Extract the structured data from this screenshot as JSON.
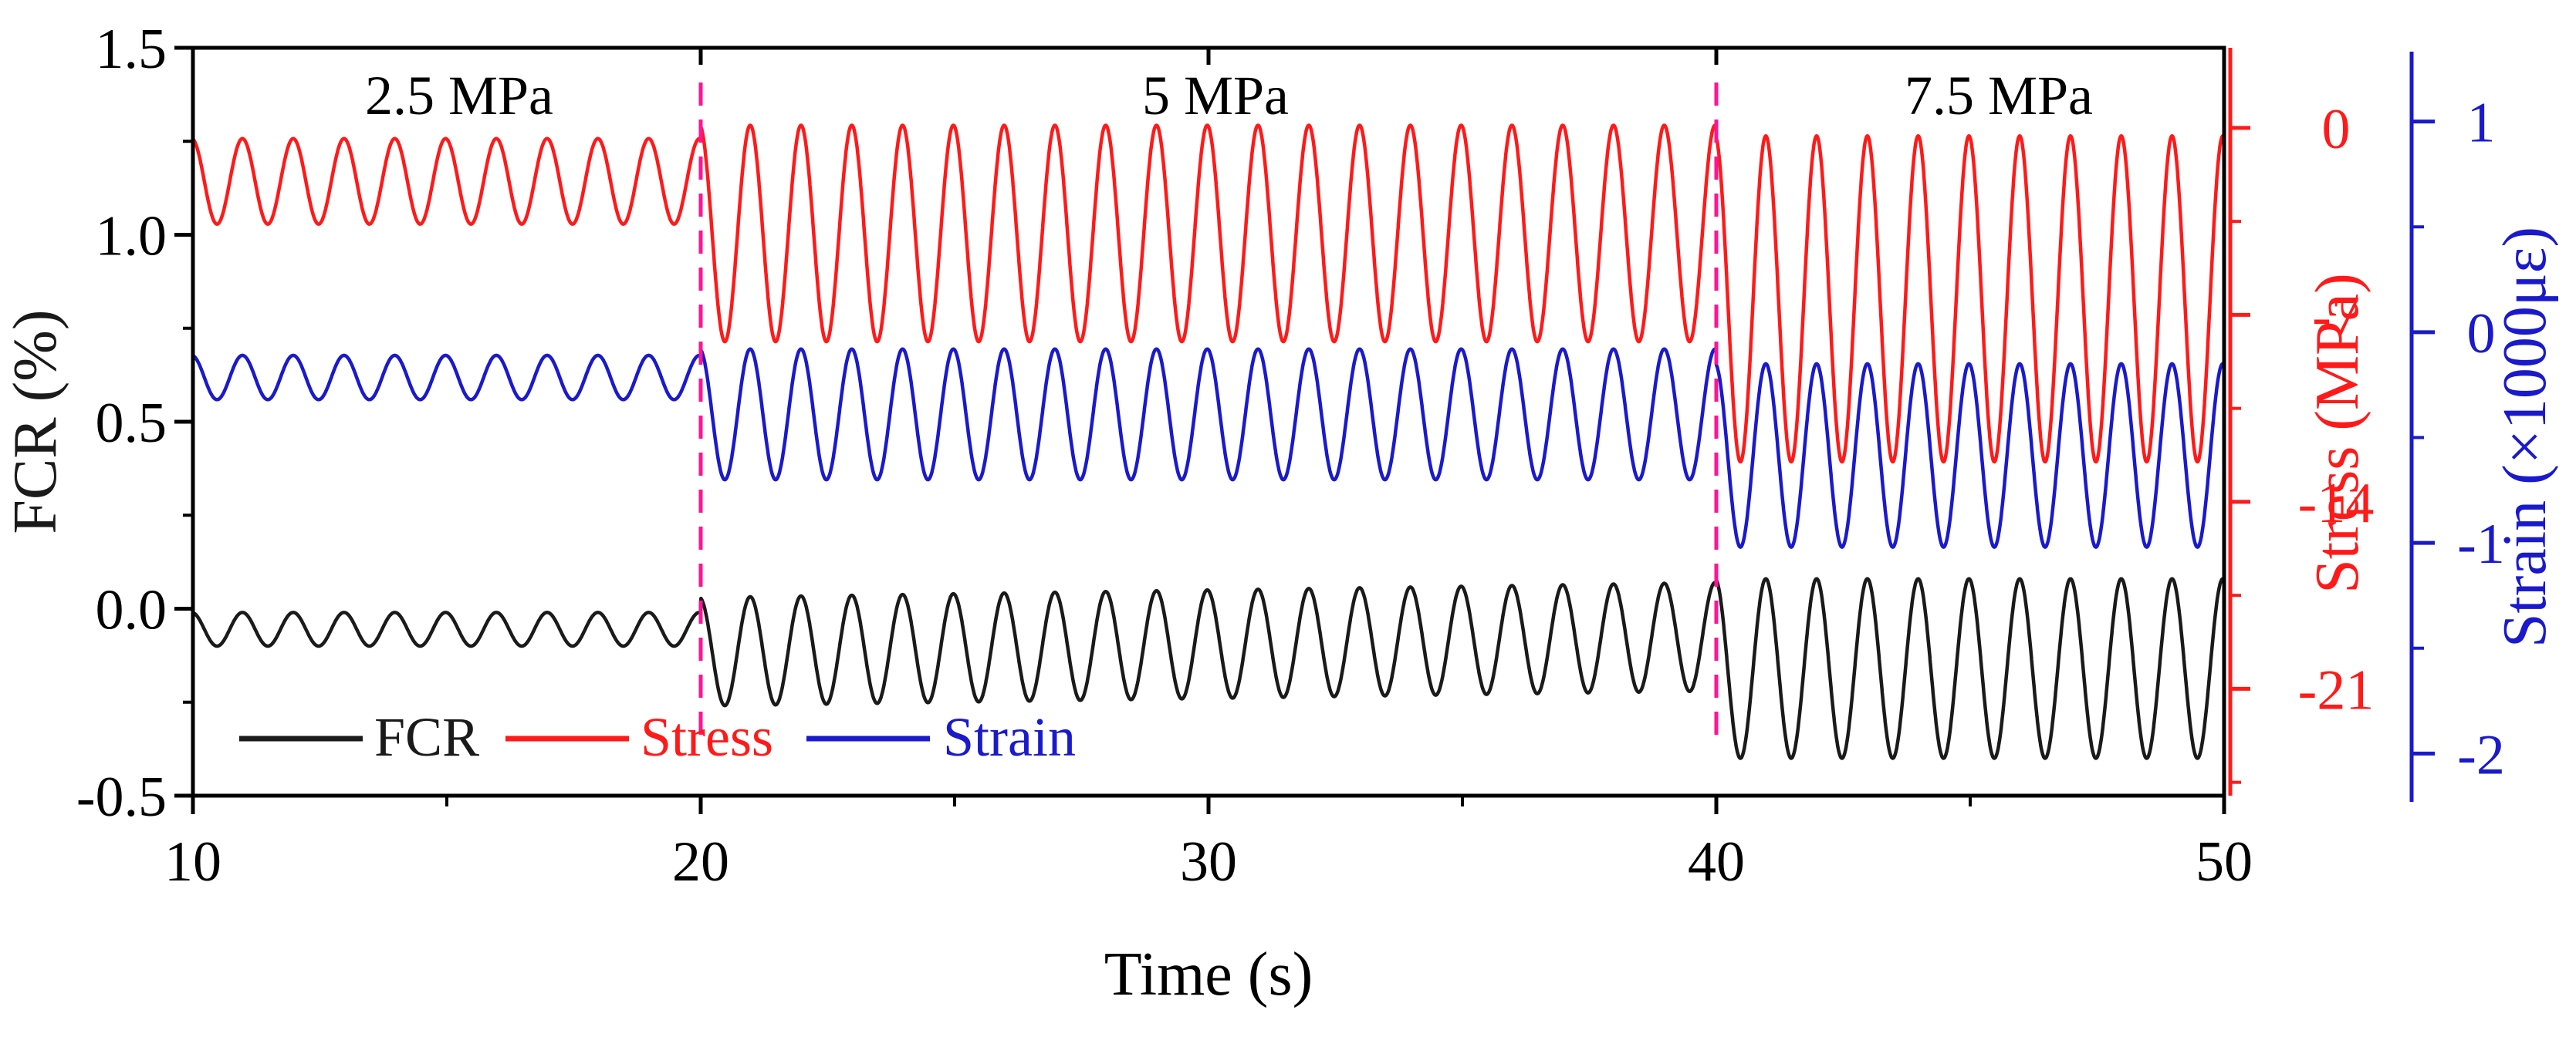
{
  "chart_data": {
    "type": "line",
    "xlabel": "Time (s)",
    "x_range": [
      10,
      50
    ],
    "x_ticks": [
      10,
      20,
      30,
      40,
      50
    ],
    "y_axes": {
      "left": {
        "label": "FCR (%)",
        "range": [
          -0.5,
          1.5
        ],
        "ticks": [
          "-0.5",
          "0.0",
          "0.5",
          "1.0",
          "1.5"
        ],
        "color": "#1a1a1a"
      },
      "right1": {
        "label": "Stress (MPa)",
        "range": [
          -25,
          3
        ],
        "ticks": [
          "0",
          "-7",
          "-14",
          "-21"
        ],
        "tick_values": [
          0,
          -7,
          -14,
          -21
        ],
        "color": "#ff1a1a"
      },
      "right2": {
        "label": "Strain (×1000με)",
        "range": [
          -2.2,
          1.35
        ],
        "ticks": [
          "1",
          "0",
          "-1",
          "-2"
        ],
        "tick_values": [
          1,
          0,
          -1,
          -2
        ],
        "color": "#1a1acc"
      }
    },
    "segments": [
      {
        "label": "2.5 MPa",
        "x_start": 10,
        "x_end": 20
      },
      {
        "label": "5 MPa",
        "x_start": 20,
        "x_end": 40
      },
      {
        "label": "7.5 MPa",
        "x_start": 40,
        "x_end": 50
      }
    ],
    "boundaries": [
      20,
      40
    ],
    "frequency_hz": 1,
    "series": [
      {
        "name": "FCR",
        "color": "#1a1a1a",
        "axis": "left",
        "segments": [
          {
            "x_start": 10,
            "x_end": 20,
            "min": -0.1,
            "max": -0.01
          },
          {
            "x_start": 20,
            "x_end": 40,
            "min_start": -0.26,
            "max_start": 0.03,
            "min_end": -0.22,
            "max_end": 0.07
          },
          {
            "x_start": 40,
            "x_end": 50,
            "min": -0.4,
            "max": 0.08
          }
        ]
      },
      {
        "name": "Stress",
        "color": "#ff1a1a",
        "axis": "right1",
        "segments": [
          {
            "x_start": 10,
            "x_end": 20,
            "min": -3.6,
            "max": -0.4
          },
          {
            "x_start": 20,
            "x_end": 40,
            "min": -8.0,
            "max": 0.1
          },
          {
            "x_start": 40,
            "x_end": 50,
            "min": -12.5,
            "max": -0.3
          }
        ]
      },
      {
        "name": "Strain",
        "color": "#1a1acc",
        "axis": "right2",
        "segments": [
          {
            "x_start": 10,
            "x_end": 20,
            "min": -0.32,
            "max": -0.11
          },
          {
            "x_start": 20,
            "x_end": 40,
            "min": -0.7,
            "max": -0.08
          },
          {
            "x_start": 40,
            "x_end": 50,
            "min": -1.02,
            "max": -0.15
          }
        ]
      }
    ],
    "legend": {
      "placement": "bottom-left",
      "entries": [
        "FCR",
        "Stress",
        "Strain"
      ]
    }
  }
}
